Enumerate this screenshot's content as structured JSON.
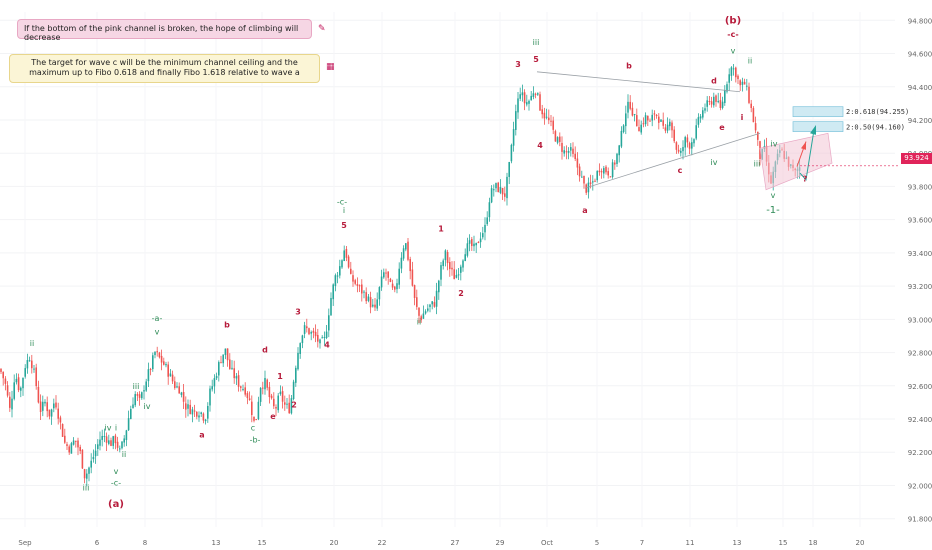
{
  "notes": {
    "pink": "If the bottom of the pink channel is broken, the hope of climbing will decrease",
    "yellow": "The target for wave c will be the minimum channel ceiling and the maximum up to Fibo 0.618 and finally Fibo 1.618 relative to wave a",
    "pink_icon": "pencil-icon",
    "yellow_icon": "chart-icon"
  },
  "price_tag": "93.924",
  "fib_labels": {
    "fib618": "2:0.618(94.255)",
    "fib50": "2:0.50(94.160)"
  },
  "colors": {
    "up": "#26a69a",
    "down": "#ef5350",
    "wave_red": "#c2185b",
    "wave_green": "#2e8b57",
    "channel": "#f3c6d6",
    "fib_box": "#cfeaf3"
  },
  "chart_data": {
    "type": "candlestick",
    "y_axis": {
      "range": [
        91.75,
        94.85
      ],
      "ticks": [
        "94.800",
        "94.600",
        "94.400",
        "94.200",
        "94.000",
        "93.800",
        "93.600",
        "93.400",
        "93.200",
        "93.000",
        "92.800",
        "92.600",
        "92.400",
        "92.200",
        "92.000",
        "91.800"
      ]
    },
    "x_ticks": [
      "Sep",
      "6",
      "8",
      "13",
      "15",
      "20",
      "22",
      "27",
      "29",
      "Oct",
      "5",
      "7",
      "11",
      "13",
      "15",
      "18",
      "20"
    ],
    "close_path": [
      [
        0,
        92.7
      ],
      [
        5,
        92.62
      ],
      [
        10,
        92.45
      ],
      [
        15,
        92.68
      ],
      [
        20,
        92.56
      ],
      [
        25,
        92.72
      ],
      [
        30,
        92.78
      ],
      [
        35,
        92.65
      ],
      [
        40,
        92.45
      ],
      [
        45,
        92.5
      ],
      [
        50,
        92.42
      ],
      [
        55,
        92.52
      ],
      [
        60,
        92.38
      ],
      [
        65,
        92.25
      ],
      [
        70,
        92.22
      ],
      [
        75,
        92.28
      ],
      [
        80,
        92.2
      ],
      [
        85,
        92.05
      ],
      [
        90,
        92.12
      ],
      [
        95,
        92.2
      ],
      [
        100,
        92.28
      ],
      [
        105,
        92.3
      ],
      [
        110,
        92.25
      ],
      [
        115,
        92.28
      ],
      [
        120,
        92.2
      ],
      [
        125,
        92.3
      ],
      [
        130,
        92.45
      ],
      [
        135,
        92.55
      ],
      [
        140,
        92.5
      ],
      [
        145,
        92.62
      ],
      [
        150,
        92.7
      ],
      [
        155,
        92.8
      ],
      [
        160,
        92.76
      ],
      [
        165,
        92.72
      ],
      [
        170,
        92.66
      ],
      [
        175,
        92.6
      ],
      [
        180,
        92.58
      ],
      [
        185,
        92.48
      ],
      [
        190,
        92.46
      ],
      [
        195,
        92.44
      ],
      [
        200,
        92.45
      ],
      [
        205,
        92.4
      ],
      [
        210,
        92.56
      ],
      [
        215,
        92.65
      ],
      [
        220,
        92.75
      ],
      [
        225,
        92.82
      ],
      [
        230,
        92.7
      ],
      [
        235,
        92.65
      ],
      [
        240,
        92.6
      ],
      [
        245,
        92.58
      ],
      [
        250,
        92.5
      ],
      [
        255,
        92.35
      ],
      [
        260,
        92.6
      ],
      [
        265,
        92.62
      ],
      [
        270,
        92.52
      ],
      [
        275,
        92.45
      ],
      [
        280,
        92.55
      ],
      [
        285,
        92.48
      ],
      [
        290,
        92.46
      ],
      [
        295,
        92.7
      ],
      [
        300,
        92.88
      ],
      [
        305,
        92.95
      ],
      [
        310,
        92.92
      ],
      [
        315,
        92.9
      ],
      [
        320,
        92.85
      ],
      [
        325,
        92.88
      ],
      [
        330,
        93.1
      ],
      [
        335,
        93.25
      ],
      [
        340,
        93.32
      ],
      [
        345,
        93.44
      ],
      [
        350,
        93.25
      ],
      [
        355,
        93.22
      ],
      [
        360,
        93.18
      ],
      [
        365,
        93.15
      ],
      [
        370,
        93.1
      ],
      [
        375,
        93.05
      ],
      [
        380,
        93.2
      ],
      [
        385,
        93.3
      ],
      [
        390,
        93.2
      ],
      [
        395,
        93.15
      ],
      [
        400,
        93.35
      ],
      [
        405,
        93.48
      ],
      [
        410,
        93.3
      ],
      [
        415,
        93.1
      ],
      [
        420,
        93.0
      ],
      [
        425,
        93.05
      ],
      [
        430,
        93.08
      ],
      [
        435,
        93.1
      ],
      [
        440,
        93.28
      ],
      [
        445,
        93.4
      ],
      [
        450,
        93.3
      ],
      [
        455,
        93.25
      ],
      [
        460,
        93.32
      ],
      [
        465,
        93.42
      ],
      [
        470,
        93.45
      ],
      [
        475,
        93.42
      ],
      [
        480,
        93.5
      ],
      [
        485,
        93.55
      ],
      [
        490,
        93.75
      ],
      [
        495,
        93.8
      ],
      [
        500,
        93.78
      ],
      [
        505,
        93.75
      ],
      [
        510,
        93.95
      ],
      [
        515,
        94.22
      ],
      [
        520,
        94.38
      ],
      [
        525,
        94.3
      ],
      [
        530,
        94.32
      ],
      [
        535,
        94.4
      ],
      [
        540,
        94.28
      ],
      [
        545,
        94.22
      ],
      [
        550,
        94.18
      ],
      [
        555,
        94.1
      ],
      [
        560,
        94.05
      ],
      [
        565,
        94.0
      ],
      [
        570,
        94.02
      ],
      [
        575,
        93.95
      ],
      [
        580,
        93.88
      ],
      [
        585,
        93.78
      ],
      [
        590,
        93.8
      ],
      [
        595,
        93.85
      ],
      [
        600,
        93.92
      ],
      [
        605,
        93.9
      ],
      [
        610,
        93.88
      ],
      [
        615,
        93.95
      ],
      [
        620,
        94.05
      ],
      [
        625,
        94.25
      ],
      [
        630,
        94.3
      ],
      [
        635,
        94.2
      ],
      [
        640,
        94.15
      ],
      [
        645,
        94.22
      ],
      [
        650,
        94.18
      ],
      [
        655,
        94.25
      ],
      [
        660,
        94.2
      ],
      [
        665,
        94.1
      ],
      [
        670,
        94.22
      ],
      [
        675,
        94.05
      ],
      [
        680,
        93.98
      ],
      [
        685,
        94.08
      ],
      [
        690,
        94.05
      ],
      [
        695,
        94.12
      ],
      [
        700,
        94.22
      ],
      [
        705,
        94.28
      ],
      [
        710,
        94.3
      ],
      [
        715,
        94.35
      ],
      [
        720,
        94.25
      ],
      [
        725,
        94.38
      ],
      [
        730,
        94.52
      ],
      [
        735,
        94.5
      ],
      [
        740,
        94.4
      ],
      [
        745,
        94.42
      ],
      [
        750,
        94.3
      ],
      [
        755,
        94.15
      ],
      [
        760,
        93.98
      ],
      [
        765,
        94.02
      ],
      [
        770,
        93.8
      ],
      [
        775,
        93.92
      ],
      [
        780,
        94.02
      ],
      [
        785,
        93.98
      ],
      [
        790,
        93.92
      ],
      [
        795,
        93.88
      ],
      [
        800,
        93.92
      ]
    ],
    "wave_labels": [
      {
        "t": "ii",
        "x": 32,
        "y": 92.84,
        "c": "g"
      },
      {
        "t": "iii",
        "x": 86,
        "y": 91.97,
        "c": "g"
      },
      {
        "t": "v",
        "x": 116,
        "y": 92.07,
        "c": "g"
      },
      {
        "t": "-c-",
        "x": 116,
        "y": 92.0,
        "c": "g"
      },
      {
        "t": "(a)",
        "x": 116,
        "y": 91.87,
        "c": "r"
      },
      {
        "t": "iv",
        "x": 108,
        "y": 92.33,
        "c": "g"
      },
      {
        "t": "i",
        "x": 116,
        "y": 92.33,
        "c": "g"
      },
      {
        "t": "ii",
        "x": 124,
        "y": 92.17,
        "c": "g"
      },
      {
        "t": "iii",
        "x": 136,
        "y": 92.58,
        "c": "g"
      },
      {
        "t": "iv",
        "x": 147,
        "y": 92.46,
        "c": "g"
      },
      {
        "t": "-a-",
        "x": 157,
        "y": 92.99,
        "c": "g"
      },
      {
        "t": "v",
        "x": 157,
        "y": 92.91,
        "c": "g"
      },
      {
        "t": "a",
        "x": 202,
        "y": 92.29,
        "c": "r"
      },
      {
        "t": "b",
        "x": 227,
        "y": 92.95,
        "c": "r"
      },
      {
        "t": "c",
        "x": 253,
        "y": 92.33,
        "c": "g"
      },
      {
        "t": "-b-",
        "x": 255,
        "y": 92.26,
        "c": "g"
      },
      {
        "t": "d",
        "x": 265,
        "y": 92.8,
        "c": "r"
      },
      {
        "t": "e",
        "x": 273,
        "y": 92.4,
        "c": "r"
      },
      {
        "t": "1",
        "x": 280,
        "y": 92.64,
        "c": "r"
      },
      {
        "t": "2",
        "x": 294,
        "y": 92.47,
        "c": "r"
      },
      {
        "t": "3",
        "x": 298,
        "y": 93.03,
        "c": "r"
      },
      {
        "t": "4",
        "x": 327,
        "y": 92.83,
        "c": "r"
      },
      {
        "t": "-c-",
        "x": 342,
        "y": 93.69,
        "c": "g"
      },
      {
        "t": "i",
        "x": 344,
        "y": 93.64,
        "c": "g"
      },
      {
        "t": "5",
        "x": 344,
        "y": 93.55,
        "c": "r"
      },
      {
        "t": "ii",
        "x": 419,
        "y": 92.97,
        "c": "g"
      },
      {
        "t": "1",
        "x": 441,
        "y": 93.53,
        "c": "r"
      },
      {
        "t": "2",
        "x": 461,
        "y": 93.14,
        "c": "r"
      },
      {
        "t": "3",
        "x": 518,
        "y": 94.52,
        "c": "r"
      },
      {
        "t": "iii",
        "x": 536,
        "y": 94.65,
        "c": "g"
      },
      {
        "t": "5",
        "x": 536,
        "y": 94.55,
        "c": "r"
      },
      {
        "t": "4",
        "x": 540,
        "y": 94.03,
        "c": "r"
      },
      {
        "t": "a",
        "x": 585,
        "y": 93.64,
        "c": "r"
      },
      {
        "t": "b",
        "x": 629,
        "y": 94.51,
        "c": "r"
      },
      {
        "t": "c",
        "x": 680,
        "y": 93.88,
        "c": "r"
      },
      {
        "t": "iv",
        "x": 714,
        "y": 93.93,
        "c": "g"
      },
      {
        "t": "d",
        "x": 714,
        "y": 94.42,
        "c": "r"
      },
      {
        "t": "e",
        "x": 722,
        "y": 94.14,
        "c": "r"
      },
      {
        "t": "(b)",
        "x": 733,
        "y": 94.78,
        "c": "r"
      },
      {
        "t": "-c-",
        "x": 733,
        "y": 94.7,
        "c": "r"
      },
      {
        "t": "v",
        "x": 733,
        "y": 94.6,
        "c": "g"
      },
      {
        "t": "ii",
        "x": 750,
        "y": 94.54,
        "c": "g"
      },
      {
        "t": "i",
        "x": 742,
        "y": 94.2,
        "c": "r"
      },
      {
        "t": "iv",
        "x": 774,
        "y": 94.04,
        "c": "g"
      },
      {
        "t": "iii",
        "x": 757,
        "y": 93.92,
        "c": "g"
      },
      {
        "t": "v",
        "x": 773,
        "y": 93.73,
        "c": "g"
      },
      {
        "t": "-1-",
        "x": 773,
        "y": 93.64,
        "c": "g"
      },
      {
        "t": "?",
        "x": 805,
        "y": 93.83,
        "c": "r"
      }
    ]
  }
}
